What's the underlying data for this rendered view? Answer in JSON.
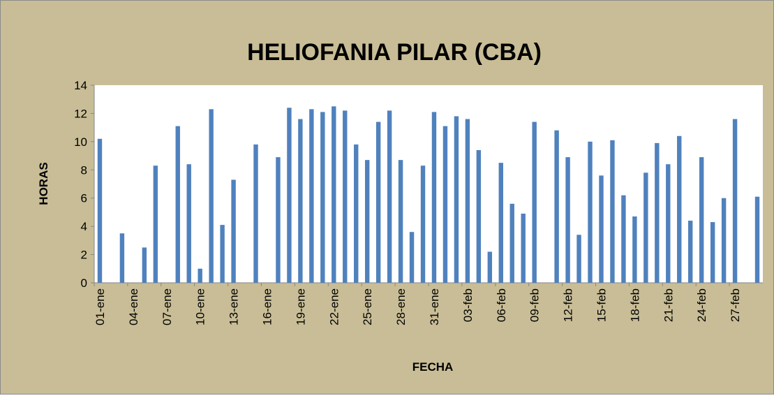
{
  "chart_data": {
    "type": "bar",
    "title": "HELIOFANIA PILAR (CBA)",
    "x_label": "FECHA",
    "y_label": "HORAS",
    "categories": [
      "01-ene",
      null,
      null,
      "04-ene",
      null,
      null,
      "07-ene",
      null,
      null,
      "10-ene",
      null,
      null,
      "13-ene",
      null,
      null,
      "16-ene",
      null,
      null,
      "19-ene",
      null,
      null,
      "22-ene",
      null,
      null,
      "25-ene",
      null,
      null,
      "28-ene",
      null,
      null,
      "31-ene",
      null,
      null,
      "03-feb",
      null,
      null,
      "06-feb",
      null,
      null,
      "09-feb",
      null,
      null,
      "12-feb",
      null,
      null,
      "15-feb",
      null,
      null,
      "18-feb",
      null,
      null,
      "21-feb",
      null,
      null,
      "24-feb",
      null,
      null,
      "27-feb",
      null,
      null
    ],
    "values": [
      10.2,
      0,
      3.5,
      0,
      2.5,
      8.3,
      0,
      11.1,
      8.4,
      1.0,
      12.3,
      4.1,
      7.3,
      0,
      9.8,
      0,
      8.9,
      12.4,
      11.6,
      12.3,
      12.1,
      12.5,
      12.2,
      9.8,
      8.7,
      11.4,
      12.2,
      8.7,
      3.6,
      8.3,
      12.1,
      11.1,
      11.8,
      11.6,
      9.4,
      2.2,
      8.5,
      5.6,
      4.9,
      11.4,
      0,
      10.8,
      8.9,
      3.4,
      10.0,
      7.6,
      10.1,
      6.2,
      4.7,
      7.8,
      9.9,
      8.4,
      10.4,
      4.4,
      8.9,
      4.3,
      6.0,
      11.6,
      0,
      6.1
    ],
    "color": "#4f81bd",
    "ylim": [
      0,
      14
    ],
    "yticks": [
      0,
      2,
      4,
      6,
      8,
      10,
      12,
      14
    ]
  }
}
